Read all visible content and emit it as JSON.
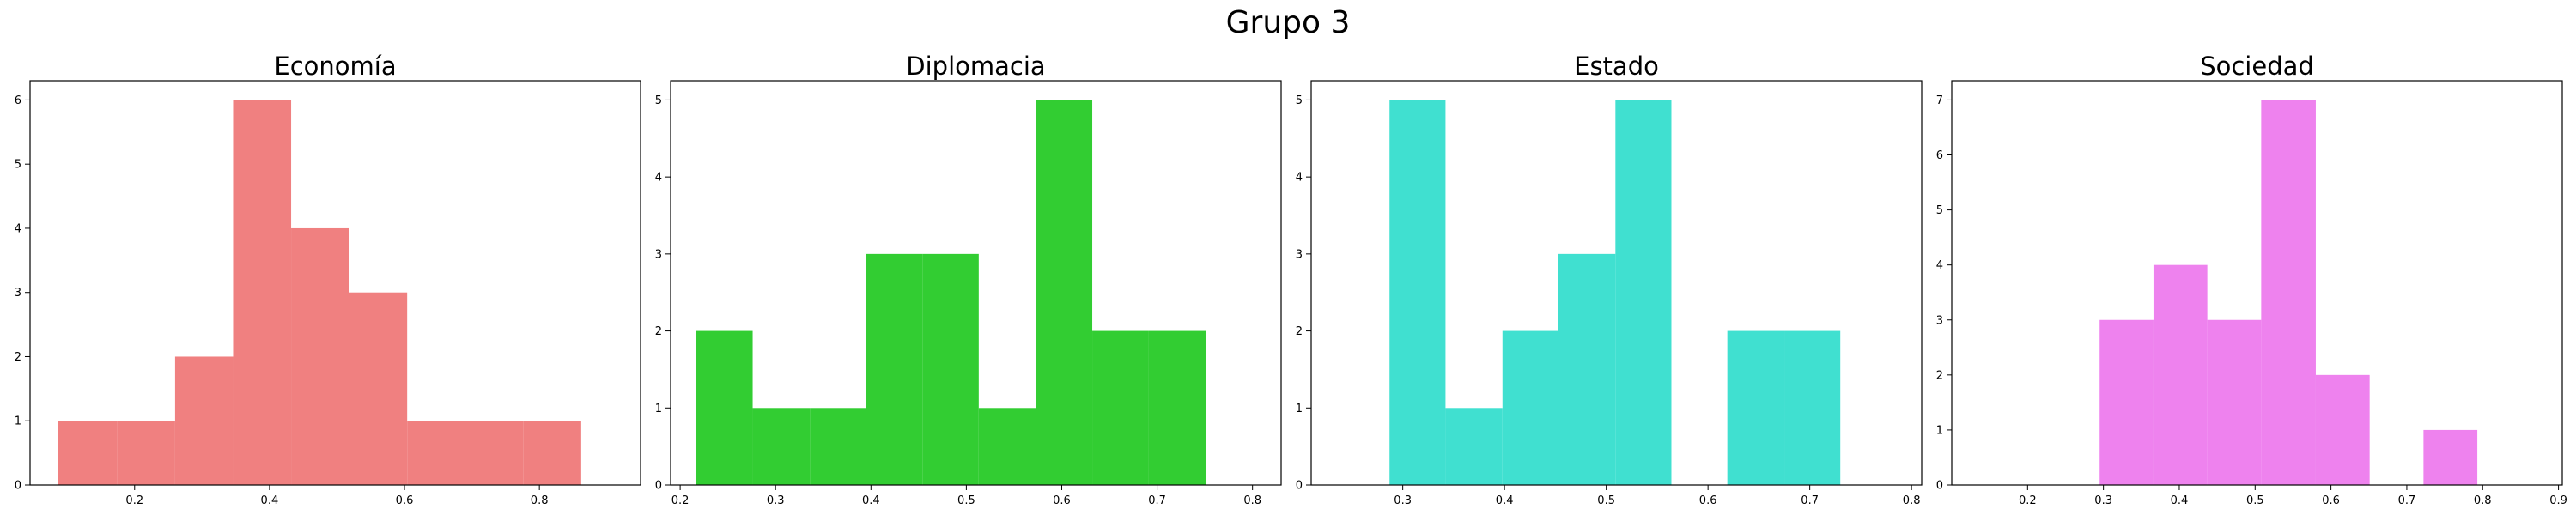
{
  "suptitle": "Grupo 3",
  "chart_data": [
    {
      "type": "bar",
      "title": "Economía",
      "color": "#F08080",
      "xlim": [
        0.045,
        0.95
      ],
      "ylim": [
        0,
        6.3
      ],
      "xticks": [
        "0.2",
        "0.4",
        "0.6",
        "0.8"
      ],
      "yticks": [
        "0",
        "1",
        "2",
        "3",
        "4",
        "5",
        "6"
      ],
      "bins": [
        {
          "x0": 0.087,
          "x1": 0.174,
          "count": 1
        },
        {
          "x0": 0.174,
          "x1": 0.26,
          "count": 1
        },
        {
          "x0": 0.26,
          "x1": 0.346,
          "count": 2
        },
        {
          "x0": 0.346,
          "x1": 0.432,
          "count": 6
        },
        {
          "x0": 0.432,
          "x1": 0.518,
          "count": 4
        },
        {
          "x0": 0.518,
          "x1": 0.604,
          "count": 3
        },
        {
          "x0": 0.604,
          "x1": 0.69,
          "count": 1
        },
        {
          "x0": 0.69,
          "x1": 0.776,
          "count": 1
        },
        {
          "x0": 0.776,
          "x1": 0.862,
          "count": 1
        }
      ]
    },
    {
      "type": "bar",
      "title": "Diplomacia",
      "color": "#32CD32",
      "xlim": [
        0.19,
        0.83
      ],
      "ylim": [
        0,
        5.25
      ],
      "xticks": [
        "0.2",
        "0.3",
        "0.4",
        "0.5",
        "0.6",
        "0.7",
        "0.8"
      ],
      "yticks": [
        "0",
        "1",
        "2",
        "3",
        "4",
        "5"
      ],
      "bins": [
        {
          "x0": 0.217,
          "x1": 0.276,
          "count": 2
        },
        {
          "x0": 0.276,
          "x1": 0.336,
          "count": 1
        },
        {
          "x0": 0.336,
          "x1": 0.395,
          "count": 1
        },
        {
          "x0": 0.395,
          "x1": 0.454,
          "count": 3
        },
        {
          "x0": 0.454,
          "x1": 0.513,
          "count": 3
        },
        {
          "x0": 0.513,
          "x1": 0.573,
          "count": 1
        },
        {
          "x0": 0.573,
          "x1": 0.632,
          "count": 5
        },
        {
          "x0": 0.632,
          "x1": 0.691,
          "count": 2
        },
        {
          "x0": 0.691,
          "x1": 0.751,
          "count": 2
        }
      ]
    },
    {
      "type": "bar",
      "title": "Estado",
      "color": "#40E0D0",
      "xlim": [
        0.21,
        0.81
      ],
      "ylim": [
        0,
        5.25
      ],
      "xticks": [
        "0.3",
        "0.4",
        "0.5",
        "0.6",
        "0.7",
        "0.8"
      ],
      "yticks": [
        "0",
        "1",
        "2",
        "3",
        "4",
        "5"
      ],
      "bins": [
        {
          "x0": 0.287,
          "x1": 0.342,
          "count": 5
        },
        {
          "x0": 0.342,
          "x1": 0.398,
          "count": 1
        },
        {
          "x0": 0.398,
          "x1": 0.453,
          "count": 2
        },
        {
          "x0": 0.453,
          "x1": 0.509,
          "count": 3
        },
        {
          "x0": 0.509,
          "x1": 0.564,
          "count": 5
        },
        {
          "x0": 0.564,
          "x1": 0.619,
          "count": 0
        },
        {
          "x0": 0.619,
          "x1": 0.675,
          "count": 2
        },
        {
          "x0": 0.675,
          "x1": 0.73,
          "count": 2
        }
      ]
    },
    {
      "type": "bar",
      "title": "Sociedad",
      "color": "#EE82EE",
      "xlim": [
        0.1,
        0.905
      ],
      "ylim": [
        0,
        7.35
      ],
      "xticks": [
        "0.2",
        "0.3",
        "0.4",
        "0.5",
        "0.6",
        "0.7",
        "0.8",
        "0.9"
      ],
      "yticks": [
        "0",
        "1",
        "2",
        "3",
        "4",
        "5",
        "6",
        "7"
      ],
      "bins": [
        {
          "x0": 0.295,
          "x1": 0.366,
          "count": 3
        },
        {
          "x0": 0.366,
          "x1": 0.437,
          "count": 4
        },
        {
          "x0": 0.437,
          "x1": 0.508,
          "count": 3
        },
        {
          "x0": 0.508,
          "x1": 0.58,
          "count": 7
        },
        {
          "x0": 0.58,
          "x1": 0.651,
          "count": 2
        },
        {
          "x0": 0.651,
          "x1": 0.722,
          "count": 0
        },
        {
          "x0": 0.722,
          "x1": 0.793,
          "count": 1
        }
      ]
    }
  ]
}
